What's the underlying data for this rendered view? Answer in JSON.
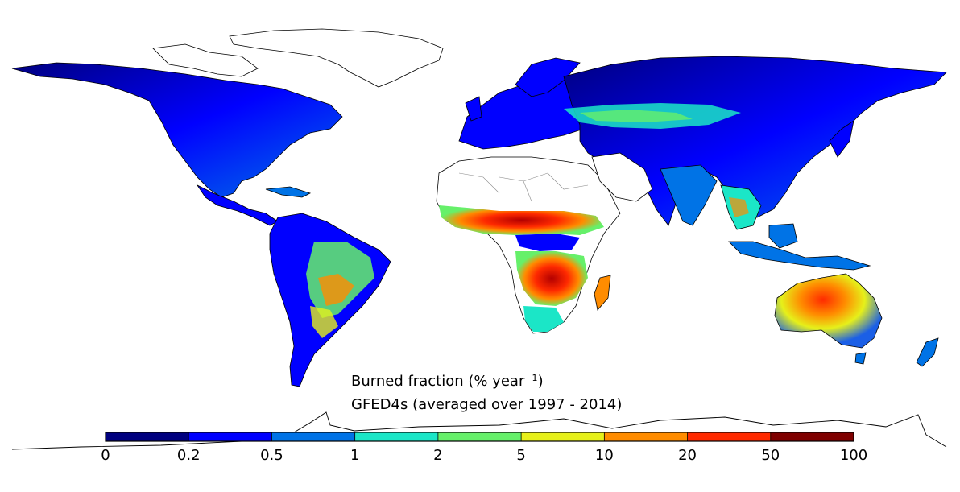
{
  "map": {
    "title_line1_main": "Burned fraction (% year",
    "title_line1_sup": "−1",
    "title_line1_end": ")",
    "title_line2": "GFED4s (averaged over 1997 - 2014)"
  },
  "colorbar": {
    "bins": [
      {
        "color": "#00007f"
      },
      {
        "color": "#0000ff"
      },
      {
        "color": "#0073e6"
      },
      {
        "color": "#1be6c7"
      },
      {
        "color": "#66f06a"
      },
      {
        "color": "#e6f01a"
      },
      {
        "color": "#ff8c00"
      },
      {
        "color": "#ff2a00"
      },
      {
        "color": "#7f0000"
      }
    ],
    "tick_labels": [
      "0",
      "0.2",
      "0.5",
      "1",
      "2",
      "5",
      "10",
      "20",
      "50",
      "100"
    ]
  },
  "chart_data": {
    "type": "heatmap",
    "title": "Burned fraction (% year−1) GFED4s (averaged over 1997 - 2014)",
    "color_scale_breaks": [
      0,
      0.2,
      0.5,
      1,
      2,
      5,
      10,
      20,
      50,
      100
    ],
    "units": "% year−1"
  }
}
